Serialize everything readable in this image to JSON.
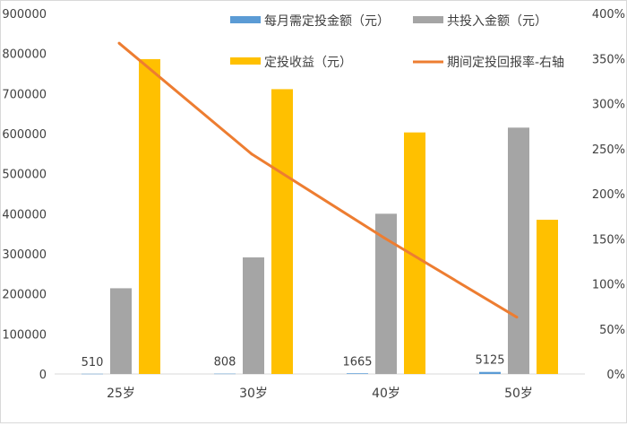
{
  "chart_data": {
    "type": "bar",
    "categories": [
      "25岁",
      "30岁",
      "40岁",
      "50岁"
    ],
    "series": [
      {
        "name": "每月需定投金额（元）",
        "type": "bar",
        "axis": "left",
        "color": "#5b9bd5",
        "values": [
          510,
          808,
          1665,
          5125
        ],
        "labels": [
          "510",
          "808",
          "1665",
          "5125"
        ]
      },
      {
        "name": "共投入金额（元）",
        "type": "bar",
        "axis": "left",
        "color": "#a5a5a5",
        "values": [
          214000,
          291000,
          400000,
          615000
        ]
      },
      {
        "name": "定投收益（元）",
        "type": "bar",
        "axis": "left",
        "color": "#ffc000",
        "values": [
          786000,
          711000,
          603000,
          385000
        ]
      },
      {
        "name": "期间定投回报率-右轴",
        "type": "line",
        "axis": "right",
        "color": "#ed7d31",
        "values": [
          3.67,
          2.44,
          1.51,
          0.63
        ]
      }
    ],
    "y_left": {
      "min": 0,
      "max": 900000,
      "ticks": [
        "0",
        "100000",
        "200000",
        "300000",
        "400000",
        "500000",
        "600000",
        "700000",
        "800000",
        "900000"
      ]
    },
    "y_right": {
      "min": 0,
      "max": 4,
      "ticks": [
        "0%",
        "50%",
        "100%",
        "150%",
        "200%",
        "250%",
        "300%",
        "350%",
        "400%"
      ]
    },
    "grid": false,
    "legend_position": "top"
  }
}
